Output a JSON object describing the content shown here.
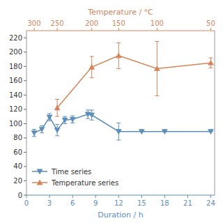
{
  "chart_data": {
    "type": "line",
    "xlabel": "Duration / h",
    "x2label": "Temperature / °C",
    "xlim": [
      0,
      24.5
    ],
    "xticks": [
      0,
      3,
      6,
      9,
      12,
      15,
      18,
      21,
      24
    ],
    "x2ticks": [
      {
        "value": 1,
        "label": "300"
      },
      {
        "value": 4,
        "label": "250"
      },
      {
        "value": 8.5,
        "label": "200"
      },
      {
        "value": 12,
        "label": "150"
      },
      {
        "value": 17,
        "label": "100"
      },
      {
        "value": 24,
        "label": "50"
      }
    ],
    "ylim": [
      0,
      230
    ],
    "yticks": [
      0,
      20,
      40,
      60,
      80,
      100,
      120,
      140,
      160,
      180,
      200,
      220
    ],
    "grid": false,
    "legend": "lower left",
    "series": [
      {
        "name": "Time series",
        "color": "#5b8db8",
        "marker": "triangle-down",
        "x": [
          1,
          2,
          3,
          4,
          5,
          6,
          8,
          8.5,
          12,
          15,
          18,
          24
        ],
        "values": [
          87,
          92,
          109,
          91,
          105,
          106,
          113,
          112,
          89,
          89,
          89,
          89
        ],
        "errors": [
          5,
          5,
          5,
          8,
          5,
          5,
          6,
          7,
          12,
          0,
          0,
          0
        ]
      },
      {
        "name": "Temperature series",
        "color": "#d4845a",
        "marker": "triangle-up",
        "x": [
          4,
          8.5,
          12,
          17,
          24
        ],
        "values": [
          122,
          179,
          195,
          177,
          185
        ],
        "errors": [
          12,
          15,
          18,
          38,
          7
        ]
      }
    ]
  }
}
